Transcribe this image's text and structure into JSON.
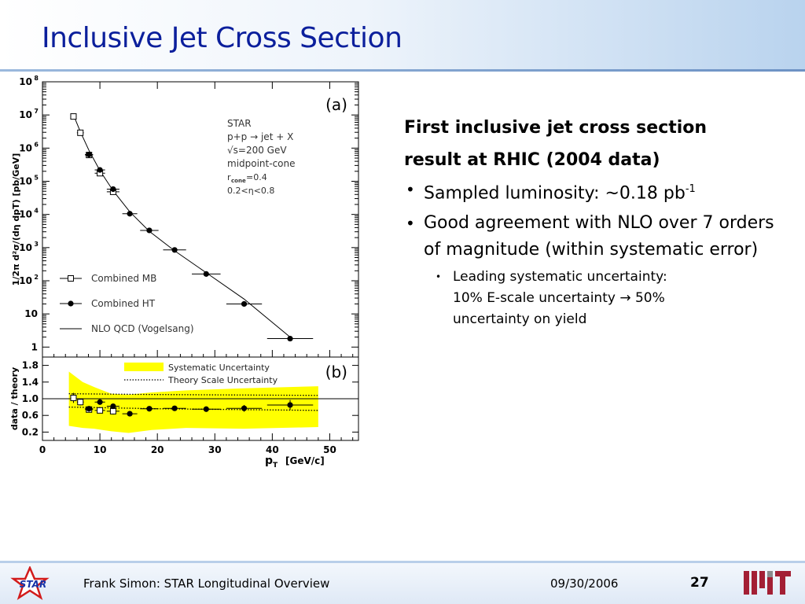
{
  "slide": {
    "title": "Inclusive Jet Cross Section",
    "heading_line1": "First inclusive jet cross section",
    "heading_line2": "result at RHIC (2004 data)",
    "bullet1_text": "Sampled luminosity: ~0.18 pb",
    "bullet1_sup": "-1",
    "bullet2": "Good agreement with NLO over 7 orders of magnitude (within systematic error)",
    "sub_bullet_line1": "Leading systematic uncertainty:",
    "sub_bullet_line2": "10% E-scale uncertainty → 50%",
    "sub_bullet_line3": "uncertainty on yield"
  },
  "footer": {
    "author": "Frank Simon: STAR Longitudinal Overview",
    "date": "09/30/2006",
    "page": "27",
    "star_logo_text": "STAR"
  },
  "colors": {
    "title": "#0b1f9c",
    "band": "#ffff00",
    "header_gradient_end": "#b9d3ee"
  },
  "chart_data": [
    {
      "panel_label": "(a)",
      "type": "scatter",
      "ylabel": "1/2π d²σ/(dη dpT) [pb/GeV]",
      "yscale": "log",
      "ylim": [
        0.5,
        100000000
      ],
      "y_ticks": [
        {
          "value": 1,
          "label": "1"
        },
        {
          "value": 10,
          "label": "10"
        },
        {
          "value": 100,
          "label": "10",
          "exp": "2"
        },
        {
          "value": 1000,
          "label": "10",
          "exp": "3"
        },
        {
          "value": 10000,
          "label": "10",
          "exp": "4"
        },
        {
          "value": 100000,
          "label": "10",
          "exp": "5"
        },
        {
          "value": 1000000,
          "label": "10",
          "exp": "6"
        },
        {
          "value": 10000000,
          "label": "10",
          "exp": "7"
        },
        {
          "value": 100000000,
          "label": "10",
          "exp": "8"
        }
      ],
      "annotation_lines": [
        "STAR",
        "p+p → jet + X",
        "√s=200  GeV",
        "midpoint-cone",
        "r",
        "cone",
        "=0.4",
        "0.2<η<0.8"
      ],
      "legend": [
        {
          "name": "Combined MB",
          "marker": "open-square"
        },
        {
          "name": "Combined HT",
          "marker": "filled-circle"
        },
        {
          "name": "NLO QCD (Vogelsang)",
          "marker": "line"
        }
      ],
      "series": [
        {
          "name": "Combined MB",
          "marker": "open-square",
          "points": [
            {
              "x": 5.4,
              "y": 9000000,
              "xerr": 0.5
            },
            {
              "x": 6.6,
              "y": 2900000,
              "xerr": 0.6
            },
            {
              "x": 8.1,
              "y": 620000,
              "xerr": 0.7
            },
            {
              "x": 10.0,
              "y": 175000,
              "xerr": 0.9
            },
            {
              "x": 12.3,
              "y": 48000,
              "xerr": 1.1
            }
          ]
        },
        {
          "name": "Combined HT",
          "marker": "filled-circle",
          "points": [
            {
              "x": 8.1,
              "y": 640000,
              "xerr": 0.7
            },
            {
              "x": 10.0,
              "y": 220000,
              "xerr": 0.9
            },
            {
              "x": 12.3,
              "y": 58000,
              "xerr": 1.1
            },
            {
              "x": 15.2,
              "y": 10500,
              "xerr": 1.3
            },
            {
              "x": 18.6,
              "y": 3300,
              "xerr": 1.6
            },
            {
              "x": 23.0,
              "y": 850,
              "xerr": 2.0
            },
            {
              "x": 28.5,
              "y": 160,
              "xerr": 2.5
            },
            {
              "x": 35.1,
              "y": 20,
              "xerr": 3.1
            },
            {
              "x": 43.1,
              "y": 1.8,
              "xerr": 4.0
            }
          ]
        },
        {
          "name": "NLO QCD (Vogelsang)",
          "type": "line",
          "points": [
            {
              "x": 5.4,
              "y": 10000000
            },
            {
              "x": 6.6,
              "y": 3100000
            },
            {
              "x": 8.1,
              "y": 850000
            },
            {
              "x": 10.0,
              "y": 210000
            },
            {
              "x": 12.3,
              "y": 52000
            },
            {
              "x": 15.2,
              "y": 12000
            },
            {
              "x": 18.6,
              "y": 3100
            },
            {
              "x": 23.0,
              "y": 800
            },
            {
              "x": 28.5,
              "y": 175
            },
            {
              "x": 35.1,
              "y": 28
            },
            {
              "x": 43.1,
              "y": 2.0
            }
          ]
        }
      ]
    },
    {
      "panel_label": "(b)",
      "type": "scatter",
      "ylabel": "data / theory",
      "xlabel": "p",
      "xlabel_sub": "T",
      "xlabel_unit": "[GeV/c]",
      "xlim": [
        0,
        55
      ],
      "ylim": [
        0,
        2.0
      ],
      "x_ticks": [
        0,
        10,
        20,
        30,
        40,
        50
      ],
      "y_ticks": [
        {
          "value": 0.2,
          "label": "0.2"
        },
        {
          "value": 0.6,
          "label": "0.6"
        },
        {
          "value": 1.0,
          "label": "1.0"
        },
        {
          "value": 1.4,
          "label": "1.4"
        },
        {
          "value": 1.8,
          "label": "1.8"
        }
      ],
      "reference_line": 1.0,
      "legend": [
        {
          "name": "Systematic Uncertainty",
          "marker": "band"
        },
        {
          "name": "Theory Scale Uncertainty",
          "marker": "dotted"
        }
      ],
      "systematic_band": [
        {
          "x": 4.6,
          "lo": 0.35,
          "hi": 1.65
        },
        {
          "x": 7.0,
          "lo": 0.3,
          "hi": 1.4
        },
        {
          "x": 9.0,
          "lo": 0.28,
          "hi": 1.28
        },
        {
          "x": 12.0,
          "lo": 0.22,
          "hi": 1.12
        },
        {
          "x": 15.0,
          "lo": 0.18,
          "hi": 1.1
        },
        {
          "x": 19.0,
          "lo": 0.25,
          "hi": 1.15
        },
        {
          "x": 25.0,
          "lo": 0.3,
          "hi": 1.2
        },
        {
          "x": 35.0,
          "lo": 0.28,
          "hi": 1.25
        },
        {
          "x": 48.0,
          "lo": 0.32,
          "hi": 1.3
        }
      ],
      "theory_scale": [
        {
          "x": 4.6,
          "lo": 0.8,
          "hi": 1.12
        },
        {
          "x": 20.0,
          "lo": 0.76,
          "hi": 1.1
        },
        {
          "x": 48.0,
          "lo": 0.72,
          "hi": 1.08
        }
      ],
      "series": [
        {
          "name": "Combined MB",
          "marker": "open-square",
          "points": [
            {
              "x": 5.4,
              "y": 1.02,
              "xerr": 0.5,
              "yerr": 0.12
            },
            {
              "x": 6.6,
              "y": 0.92,
              "xerr": 0.6,
              "yerr": 0.08
            },
            {
              "x": 8.1,
              "y": 0.74,
              "xerr": 0.7,
              "yerr": 0.06
            },
            {
              "x": 10.0,
              "y": 0.72,
              "xerr": 0.9,
              "yerr": 0.06
            },
            {
              "x": 12.3,
              "y": 0.7,
              "xerr": 1.1,
              "yerr": 0.08
            }
          ]
        },
        {
          "name": "Combined HT",
          "marker": "filled-circle",
          "points": [
            {
              "x": 8.1,
              "y": 0.76,
              "xerr": 0.7,
              "yerr": 0.05
            },
            {
              "x": 10.0,
              "y": 0.92,
              "xerr": 0.9,
              "yerr": 0.05
            },
            {
              "x": 12.3,
              "y": 0.82,
              "xerr": 1.1,
              "yerr": 0.05
            },
            {
              "x": 15.2,
              "y": 0.64,
              "xerr": 1.3,
              "yerr": 0.04
            },
            {
              "x": 18.6,
              "y": 0.76,
              "xerr": 1.6,
              "yerr": 0.04
            },
            {
              "x": 23.0,
              "y": 0.77,
              "xerr": 2.0,
              "yerr": 0.05
            },
            {
              "x": 28.5,
              "y": 0.75,
              "xerr": 2.5,
              "yerr": 0.06
            },
            {
              "x": 35.1,
              "y": 0.77,
              "xerr": 3.1,
              "yerr": 0.08
            },
            {
              "x": 43.1,
              "y": 0.85,
              "xerr": 4.0,
              "yerr": 0.12
            }
          ]
        }
      ]
    }
  ]
}
